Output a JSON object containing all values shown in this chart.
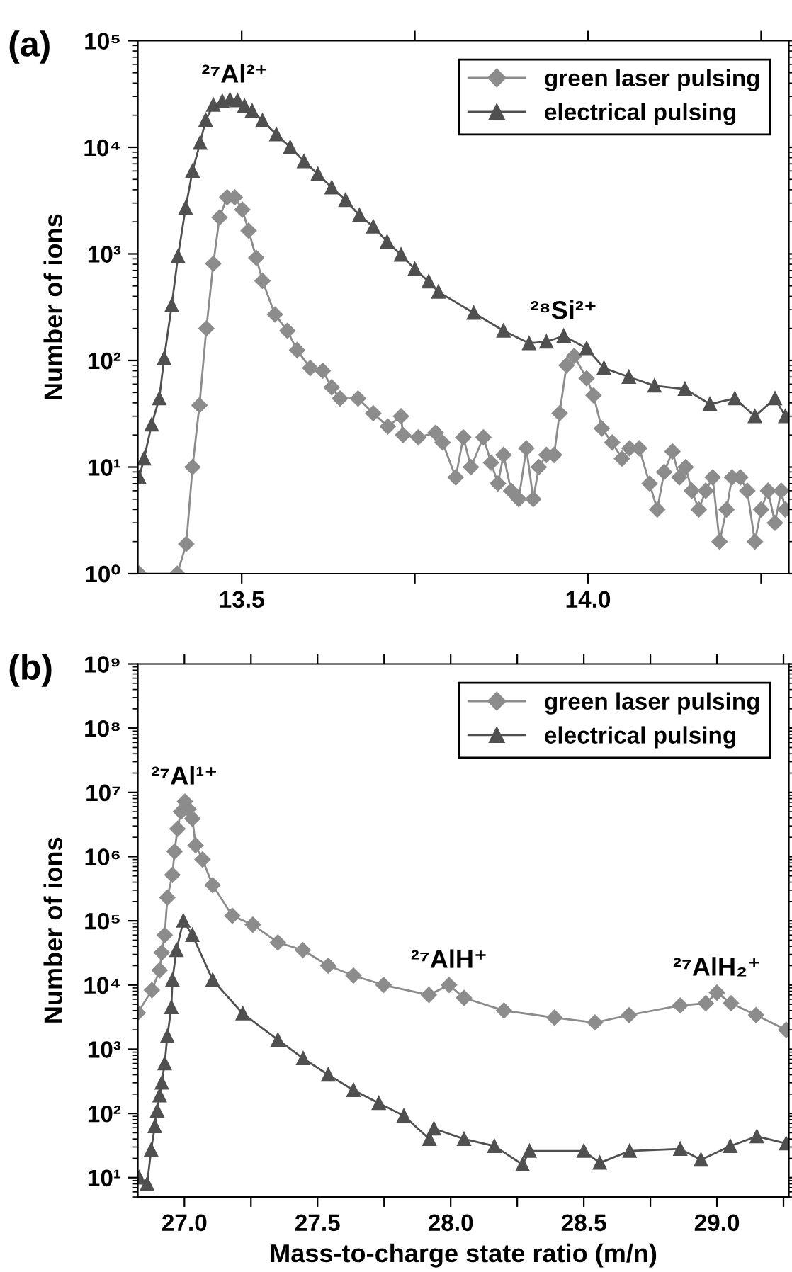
{
  "chart_data": [
    {
      "type": "line",
      "title": "(a)",
      "ylabel": "Number of ions",
      "log": "y",
      "legend": "top right",
      "grid": false,
      "xlim": [
        13.35,
        14.29
      ],
      "xticks": [
        {
          "value": 13.5,
          "label": "13.5"
        },
        {
          "value": 13.75,
          "label": null
        },
        {
          "value": 14.0,
          "label": "14.0"
        },
        {
          "value": 14.25,
          "label": null
        }
      ],
      "ylim": [
        1,
        100000
      ],
      "yticks": [
        {
          "value": 1,
          "label": "10⁰"
        },
        {
          "value": 10,
          "label": "10¹"
        },
        {
          "value": 100,
          "label": "10²"
        },
        {
          "value": 1000,
          "label": "10³"
        },
        {
          "value": 10000,
          "label": "10⁴"
        },
        {
          "value": 100000,
          "label": "10⁵"
        }
      ],
      "annotations": [
        {
          "text": "²⁷Al²⁺",
          "x": 13.49,
          "y": 28000
        },
        {
          "text": "²⁸Si²⁺",
          "x": 13.965,
          "y": 170
        }
      ],
      "series": [
        {
          "name": "green laser pulsing",
          "color": "#8c8c8c",
          "marker": "diamond",
          "x": [
            13.352,
            13.407,
            13.42,
            13.429,
            13.439,
            13.449,
            13.459,
            13.468,
            13.479,
            13.49,
            13.501,
            13.51,
            13.521,
            13.53,
            13.548,
            13.566,
            13.58,
            13.599,
            13.617,
            13.63,
            13.642,
            13.668,
            13.69,
            13.711,
            13.73,
            13.733,
            13.755,
            13.78,
            13.79,
            13.809,
            13.82,
            13.831,
            13.849,
            13.86,
            13.87,
            13.878,
            13.889,
            13.9,
            13.911,
            13.921,
            13.929,
            13.94,
            13.951,
            13.959,
            13.969,
            13.98,
            13.998,
            14.008,
            14.02,
            14.035,
            14.049,
            14.06,
            14.074,
            14.089,
            14.1,
            14.11,
            14.122,
            14.132,
            14.141,
            14.15,
            14.16,
            14.17,
            14.18,
            14.19,
            14.2,
            14.208,
            14.22,
            14.23,
            14.241,
            14.25,
            14.26,
            14.27,
            14.279,
            14.285
          ],
          "values": [
            1,
            1,
            1.9,
            10,
            38,
            200,
            810,
            2200,
            3400,
            3400,
            2600,
            1650,
            920,
            560,
            270,
            190,
            125,
            85,
            80,
            56,
            44,
            44,
            32,
            24,
            30,
            20,
            19,
            21,
            17,
            8,
            19,
            10,
            19,
            11,
            7,
            13,
            6,
            5,
            15,
            5,
            10,
            13,
            13,
            32,
            90,
            110,
            68,
            47,
            23,
            17,
            12,
            15,
            15,
            7,
            4,
            9,
            14,
            8,
            10,
            6,
            4,
            6,
            8,
            2,
            4,
            8,
            8,
            6,
            2,
            4,
            6,
            3,
            6,
            4
          ]
        },
        {
          "name": "electrical pulsing",
          "color": "#505050",
          "marker": "triangle",
          "x": [
            13.352,
            13.359,
            13.37,
            13.381,
            13.388,
            13.399,
            13.408,
            13.419,
            13.429,
            13.44,
            13.448,
            13.459,
            13.472,
            13.483,
            13.494,
            13.504,
            13.515,
            13.53,
            13.55,
            13.57,
            13.59,
            13.61,
            13.63,
            13.65,
            13.67,
            13.69,
            13.71,
            13.73,
            13.75,
            13.77,
            13.784,
            13.835,
            13.878,
            13.915,
            13.94,
            13.965,
            13.998,
            14.023,
            14.059,
            14.096,
            14.14,
            14.176,
            14.212,
            14.241,
            14.27,
            14.285
          ],
          "values": [
            8,
            12,
            25,
            44,
            105,
            330,
            950,
            2700,
            6000,
            11000,
            18000,
            25000,
            27000,
            28000,
            27500,
            24500,
            22000,
            17800,
            13200,
            10000,
            7400,
            5600,
            4200,
            3200,
            2300,
            1800,
            1300,
            980,
            720,
            550,
            440,
            280,
            190,
            145,
            150,
            170,
            130,
            85,
            70,
            58,
            54,
            39,
            44,
            30,
            44,
            30
          ]
        }
      ]
    },
    {
      "type": "line",
      "title": "(b)",
      "xlabel": "Mass-to-charge state ratio (m/n)",
      "ylabel": "Number of ions",
      "log": "y",
      "legend": "top right",
      "grid": false,
      "xlim": [
        26.825,
        29.27
      ],
      "xticks": [
        {
          "value": 27.0,
          "label": "27.0"
        },
        {
          "value": 27.25,
          "label": null
        },
        {
          "value": 27.5,
          "label": "27.5"
        },
        {
          "value": 27.75,
          "label": null
        },
        {
          "value": 28.0,
          "label": "28.0"
        },
        {
          "value": 28.25,
          "label": null
        },
        {
          "value": 28.5,
          "label": "28.5"
        },
        {
          "value": 28.75,
          "label": null
        },
        {
          "value": 29.0,
          "label": "29.0"
        },
        {
          "value": 29.25,
          "label": null
        }
      ],
      "ylim": [
        5,
        1000000000
      ],
      "yticks": [
        {
          "value": 10,
          "label": "10¹"
        },
        {
          "value": 100,
          "label": "10²"
        },
        {
          "value": 1000,
          "label": "10³"
        },
        {
          "value": 10000,
          "label": "10⁴"
        },
        {
          "value": 100000,
          "label": "10⁵"
        },
        {
          "value": 1000000,
          "label": "10⁶"
        },
        {
          "value": 10000000,
          "label": "10⁷"
        },
        {
          "value": 100000000,
          "label": "10⁸"
        },
        {
          "value": 1000000000,
          "label": "10⁹"
        }
      ],
      "annotations": [
        {
          "text": "²⁷Al¹⁺",
          "x": 27.0,
          "y": 7200000
        },
        {
          "text": "²⁷AlH⁺",
          "x": 27.994,
          "y": 10000
        },
        {
          "text": "²⁷AlH₂⁺",
          "x": 29.0,
          "y": 7600
        }
      ],
      "series": [
        {
          "name": "green laser pulsing",
          "color": "#8c8c8c",
          "marker": "diamond",
          "x": [
            26.825,
            26.878,
            26.907,
            26.915,
            26.926,
            26.936,
            26.955,
            26.963,
            26.974,
            26.987,
            27.002,
            27.015,
            27.03,
            27.042,
            27.068,
            27.106,
            27.18,
            27.257,
            27.351,
            27.445,
            27.54,
            27.635,
            27.748,
            27.918,
            27.994,
            28.05,
            28.2,
            28.39,
            28.542,
            28.67,
            28.862,
            28.958,
            29.0,
            29.053,
            29.147,
            29.26
          ],
          "values": [
            3700,
            8300,
            17000,
            32000,
            60000,
            230000,
            520000,
            1200000,
            2700000,
            5000000,
            7200000,
            5500000,
            3900000,
            1500000,
            900000,
            360000,
            120000,
            87000,
            46000,
            35000,
            20000,
            14000,
            10000,
            7000,
            10000,
            6300,
            4000,
            3100,
            2600,
            3400,
            4800,
            5200,
            7600,
            5200,
            3400,
            2000
          ]
        },
        {
          "name": "electrical pulsing",
          "color": "#505050",
          "marker": "triangle",
          "x": [
            26.83,
            26.86,
            26.875,
            26.889,
            26.898,
            26.907,
            26.915,
            26.926,
            26.936,
            26.951,
            26.955,
            26.97,
            26.996,
            27.03,
            27.106,
            27.219,
            27.351,
            27.446,
            27.54,
            27.635,
            27.73,
            27.824,
            27.92,
            27.937,
            28.05,
            28.164,
            28.27,
            28.296,
            28.5,
            28.56,
            28.672,
            28.862,
            28.94,
            29.05,
            29.15,
            29.26
          ],
          "values": [
            10,
            8,
            27,
            63,
            110,
            190,
            300,
            600,
            1600,
            4500,
            12000,
            35000,
            100000,
            60000,
            12000,
            3600,
            1400,
            720,
            400,
            230,
            145,
            92,
            40,
            58,
            40,
            31,
            16,
            26,
            26,
            17,
            26,
            28,
            19,
            31,
            44,
            34
          ]
        }
      ]
    }
  ]
}
